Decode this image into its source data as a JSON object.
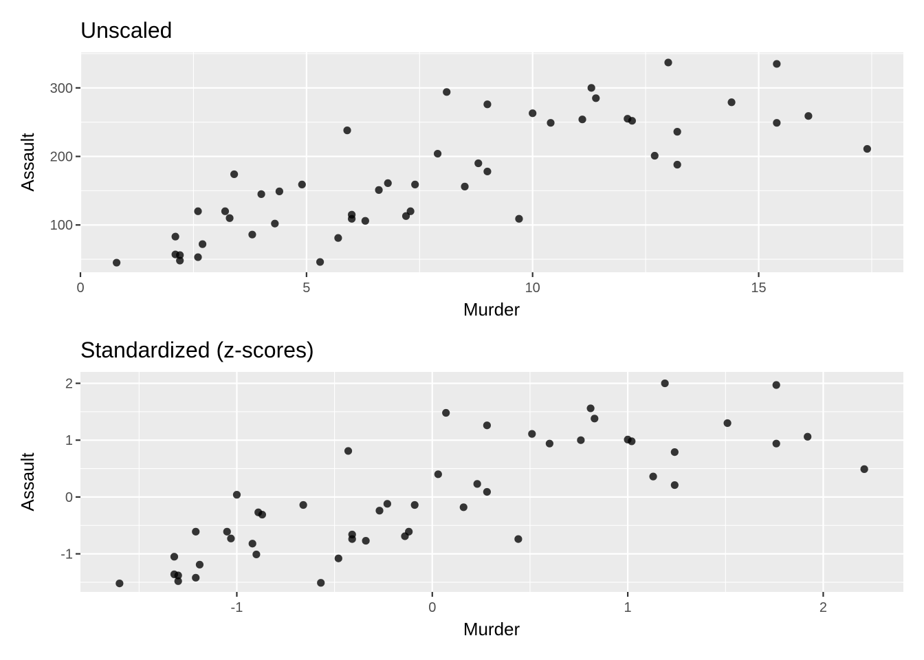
{
  "chart_data": [
    {
      "type": "scatter",
      "title": "Unscaled",
      "xlabel": "Murder",
      "ylabel": "Assault",
      "xlim": [
        0,
        18.2
      ],
      "ylim": [
        31,
        352
      ],
      "x_ticks": [
        0,
        5,
        10,
        15
      ],
      "x_tick_labels": [
        "0",
        "5",
        "10",
        "15"
      ],
      "y_ticks": [
        100,
        200,
        300
      ],
      "y_tick_labels": [
        "100",
        "200",
        "300"
      ],
      "grid": true,
      "series": [
        {
          "x": [
            13.2,
            10.0,
            8.1,
            8.8,
            9.0,
            7.9,
            3.3,
            5.9,
            15.4,
            17.4,
            5.3,
            2.6,
            10.4,
            7.2,
            2.2,
            6.0,
            9.7,
            15.4,
            2.1,
            11.3,
            4.4,
            12.1,
            2.7,
            16.1,
            9.0,
            6.0,
            4.3,
            12.2,
            2.1,
            7.4,
            11.4,
            11.1,
            13.0,
            0.8,
            7.3,
            6.6,
            4.9,
            6.3,
            3.4,
            14.4,
            3.8,
            13.2,
            12.7,
            3.2,
            2.2,
            8.5,
            4.0,
            5.7,
            2.6,
            6.8
          ],
          "y": [
            236,
            263,
            294,
            190,
            276,
            204,
            110,
            238,
            335,
            211,
            46,
            120,
            249,
            113,
            56,
            115,
            109,
            249,
            83,
            300,
            149,
            255,
            72,
            259,
            178,
            109,
            102,
            252,
            57,
            159,
            285,
            254,
            337,
            45,
            120,
            151,
            159,
            106,
            174,
            279,
            86,
            188,
            201,
            120,
            48,
            156,
            145,
            81,
            53,
            161
          ]
        }
      ]
    },
    {
      "type": "scatter",
      "title": "Standardized (z-scores)",
      "xlabel": "Murder",
      "ylabel": "Assault",
      "xlim": [
        -1.8,
        2.41
      ],
      "ylim": [
        -1.67,
        2.2
      ],
      "x_ticks": [
        -1,
        0,
        1,
        2
      ],
      "x_tick_labels": [
        "-1",
        "0",
        "1",
        "2"
      ],
      "y_ticks": [
        -1,
        0,
        1,
        2
      ],
      "y_tick_labels": [
        "-1",
        "0",
        "1",
        "2"
      ],
      "grid": true,
      "series": [
        {
          "x": [
            1.24,
            0.51,
            0.07,
            0.23,
            0.28,
            0.03,
            -1.03,
            -0.43,
            1.76,
            2.21,
            -0.57,
            -1.21,
            0.6,
            -0.14,
            -1.3,
            -0.41,
            0.44,
            1.76,
            -1.32,
            0.81,
            -0.89,
            1.0,
            -1.19,
            1.92,
            0.28,
            -0.41,
            -0.92,
            1.02,
            -1.32,
            -0.09,
            0.83,
            0.76,
            1.19,
            -1.6,
            -0.12,
            -0.27,
            -0.66,
            -0.34,
            -1.0,
            1.51,
            -0.9,
            1.24,
            1.13,
            -1.05,
            -1.3,
            0.16,
            -0.87,
            -0.48,
            -1.21,
            -0.23
          ],
          "y": [
            0.79,
            1.11,
            1.48,
            0.23,
            1.26,
            0.4,
            -0.73,
            0.81,
            1.97,
            0.49,
            -1.51,
            -0.61,
            0.94,
            -0.69,
            -1.38,
            -0.66,
            -0.74,
            0.94,
            -1.05,
            1.56,
            -0.27,
            1.01,
            -1.19,
            1.06,
            0.09,
            -0.74,
            -0.82,
            0.98,
            -1.36,
            -0.14,
            1.38,
            1.0,
            2.0,
            -1.52,
            -0.61,
            -0.24,
            -0.14,
            -0.77,
            0.04,
            1.3,
            -1.01,
            0.21,
            0.36,
            -0.61,
            -1.48,
            -0.18,
            -0.31,
            -1.08,
            -1.42,
            -0.12
          ]
        }
      ]
    }
  ]
}
